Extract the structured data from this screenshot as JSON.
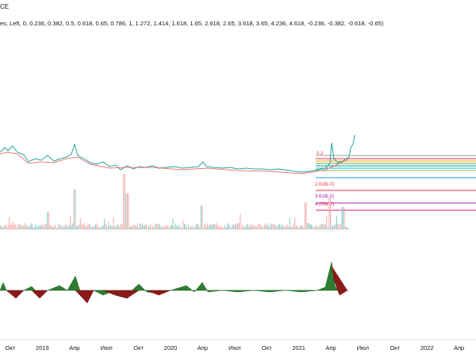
{
  "header": {
    "symbol": "CE",
    "indicator": "es, Left, 0, 0.236, 0.382, 0.5, 0.618, 0.65, 0.786, 1, 1.272, 1.414, 1.618, 1.65, 2.618, 2.65, 3.618, 3.65, 4.236, 4.618, -0.236, -0.382, -0.618, -0.65)"
  },
  "fib_labels": [
    "0.2",
    "2.618(-0)",
    "3.618(-0)",
    "4.236(-0)"
  ],
  "time_axis": [
    "Окт",
    "2019",
    "Апр",
    "Июл",
    "Окт",
    "2020",
    "Апр",
    "Июл",
    "Окт",
    "2021",
    "Апр",
    "Июл",
    "Окт",
    "2022",
    "Апр"
  ]
}
